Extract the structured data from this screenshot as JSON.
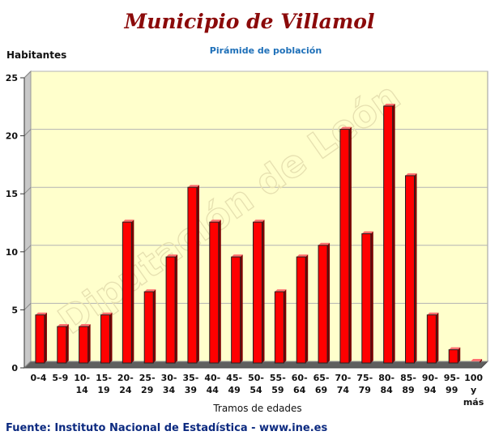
{
  "header": {
    "title": "Municipio de Villamol",
    "subtitle": "Pirámide de población"
  },
  "watermark": "Diputación de León",
  "footer": {
    "source": "Fuente: Instituto Nacional de Estadística - www.ine.es"
  },
  "colors": {
    "plot_background": "#ffffcc",
    "bar": "#ff0000",
    "title": "#8b0a0a",
    "subtitle": "#1d6fb8",
    "source": "#0c2a80"
  },
  "chart_data": {
    "type": "bar",
    "title": "Municipio de Villamol",
    "subtitle": "Pirámide de población",
    "ylabel": "Habitantes",
    "xlabel": "Tramos de edades",
    "ylim": [
      0,
      25
    ],
    "yticks": [
      0,
      5,
      10,
      15,
      20,
      25
    ],
    "grid": true,
    "legend": "none",
    "categories": [
      "0-4",
      "5-9",
      "10-14",
      "15-19",
      "20-24",
      "25-29",
      "30-34",
      "35-39",
      "40-44",
      "45-49",
      "50-54",
      "55-59",
      "60-64",
      "65-69",
      "70-74",
      "75-79",
      "80-84",
      "85-89",
      "90-94",
      "95-99",
      "100 y más"
    ],
    "category_lines": [
      [
        "0-4"
      ],
      [
        "5-9"
      ],
      [
        "10-",
        "14"
      ],
      [
        "15-",
        "19"
      ],
      [
        "20-",
        "24"
      ],
      [
        "25-",
        "29"
      ],
      [
        "30-",
        "34"
      ],
      [
        "35-",
        "39"
      ],
      [
        "40-",
        "44"
      ],
      [
        "45-",
        "49"
      ],
      [
        "50-",
        "54"
      ],
      [
        "55-",
        "59"
      ],
      [
        "60-",
        "64"
      ],
      [
        "65-",
        "69"
      ],
      [
        "70-",
        "74"
      ],
      [
        "75-",
        "79"
      ],
      [
        "80-",
        "84"
      ],
      [
        "85-",
        "89"
      ],
      [
        "90-",
        "94"
      ],
      [
        "95-",
        "99"
      ],
      [
        "100",
        "y",
        "más"
      ]
    ],
    "values": [
      4,
      3,
      3,
      4,
      12,
      6,
      9,
      15,
      12,
      9,
      12,
      6,
      9,
      10,
      20,
      11,
      22,
      16,
      4,
      1,
      0
    ]
  }
}
